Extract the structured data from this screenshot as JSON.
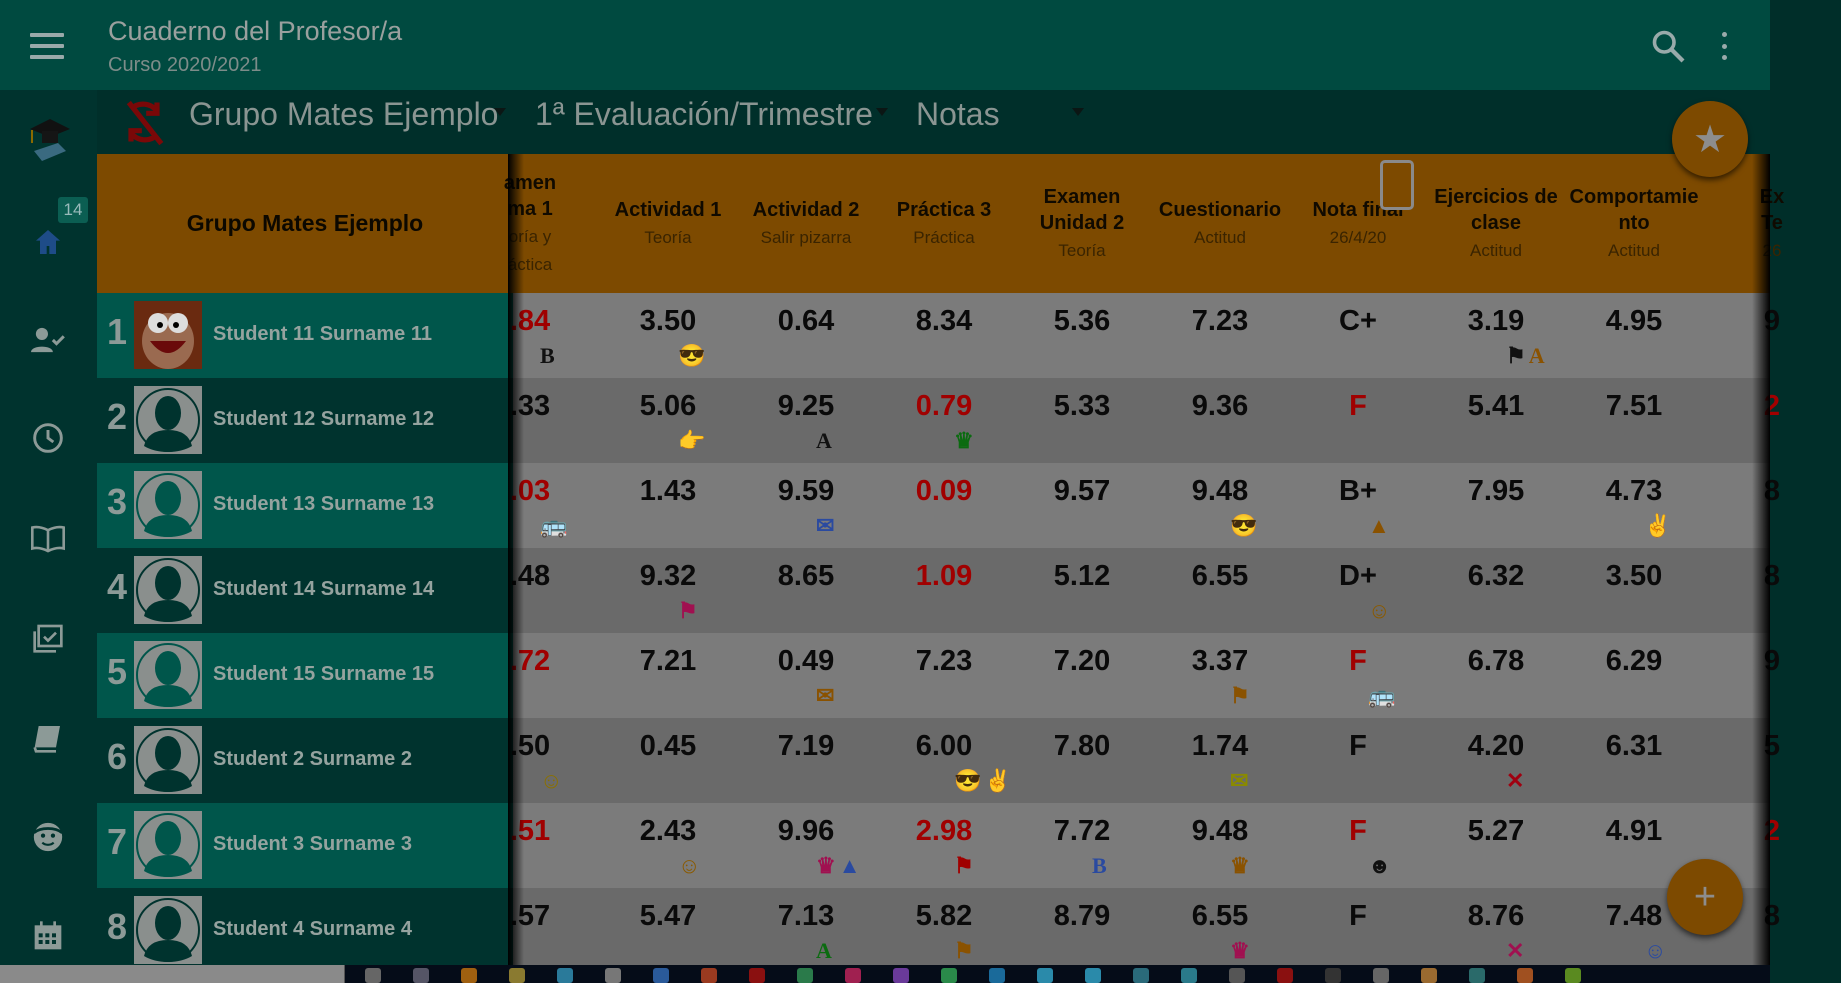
{
  "app": {
    "title": "Cuaderno del Profesor/a",
    "subtitle": "Curso 2020/2021"
  },
  "toolbar": {
    "group": "Grupo Mates Ejemplo",
    "evaluation": "1ª Evaluación/Trimestre",
    "view": "Notas"
  },
  "sidebar": {
    "badge": "14",
    "items": [
      "logo",
      "home",
      "attendance",
      "history",
      "book-open",
      "tasks",
      "book",
      "face",
      "calendar"
    ]
  },
  "table": {
    "group_header": "Grupo Mates Ejemplo",
    "columns": [
      {
        "title": [
          "amen",
          "ma 1"
        ],
        "subtitle": [
          "oría y",
          "áctica"
        ]
      },
      {
        "title": [
          "Actividad 1"
        ],
        "subtitle": [
          "Teoría"
        ]
      },
      {
        "title": [
          "Actividad 2"
        ],
        "subtitle": [
          "Salir pizarra"
        ]
      },
      {
        "title": [
          "Práctica 3"
        ],
        "subtitle": [
          "Práctica"
        ]
      },
      {
        "title": [
          "Examen",
          "Unidad 2"
        ],
        "subtitle": [
          "Teoría"
        ]
      },
      {
        "title": [
          "Cuestionario"
        ],
        "subtitle": [
          "Actitud"
        ]
      },
      {
        "title": [
          "Nota final"
        ],
        "subtitle": [
          "26/4/20"
        ]
      },
      {
        "title": [
          "Ejercicios de",
          "clase"
        ],
        "subtitle": [
          "Actitud"
        ]
      },
      {
        "title": [
          "Comportamie",
          "nto"
        ],
        "subtitle": [
          "Actitud"
        ]
      },
      {
        "title": [
          "Ex",
          "Te"
        ],
        "subtitle": [
          "26"
        ]
      }
    ],
    "students": [
      {
        "num": "1",
        "name": "Student 11 Surname 11",
        "avatar": "cartoon"
      },
      {
        "num": "2",
        "name": "Student 12 Surname 12",
        "avatar": "default"
      },
      {
        "num": "3",
        "name": "Student 13 Surname 13",
        "avatar": "default"
      },
      {
        "num": "4",
        "name": "Student 14 Surname 14",
        "avatar": "default"
      },
      {
        "num": "5",
        "name": "Student 15 Surname 15",
        "avatar": "default"
      },
      {
        "num": "6",
        "name": "Student 2 Surname 2",
        "avatar": "default"
      },
      {
        "num": "7",
        "name": "Student 3 Surname 3",
        "avatar": "default"
      },
      {
        "num": "8",
        "name": "Student 4 Surname 4",
        "avatar": "default"
      }
    ],
    "rows": [
      [
        ".84",
        "3.50",
        "0.64",
        "8.34",
        "5.36",
        "7.23",
        "C+",
        "3.19",
        "4.95",
        "9"
      ],
      [
        ".33",
        "5.06",
        "9.25",
        "0.79",
        "5.33",
        "9.36",
        "F",
        "5.41",
        "7.51",
        "2"
      ],
      [
        ".03",
        "1.43",
        "9.59",
        "0.09",
        "9.57",
        "9.48",
        "B+",
        "7.95",
        "4.73",
        "8"
      ],
      [
        ".48",
        "9.32",
        "8.65",
        "1.09",
        "5.12",
        "6.55",
        "D+",
        "6.32",
        "3.50",
        "8"
      ],
      [
        ".72",
        "7.21",
        "0.49",
        "7.23",
        "7.20",
        "3.37",
        "F",
        "6.78",
        "6.29",
        "9"
      ],
      [
        ".50",
        "0.45",
        "7.19",
        "6.00",
        "7.80",
        "1.74",
        "F",
        "4.20",
        "6.31",
        "5"
      ],
      [
        ".51",
        "2.43",
        "9.96",
        "2.98",
        "7.72",
        "9.48",
        "F",
        "5.27",
        "4.91",
        "2"
      ],
      [
        ".57",
        "5.47",
        "7.13",
        "5.82",
        "8.79",
        "6.55",
        "F",
        "8.76",
        "7.48",
        "8"
      ]
    ],
    "failing": [
      [
        0,
        0
      ],
      [
        1,
        3
      ],
      [
        1,
        6
      ],
      [
        1,
        9
      ],
      [
        2,
        0
      ],
      [
        2,
        3
      ],
      [
        3,
        3
      ],
      [
        4,
        0
      ],
      [
        4,
        6
      ],
      [
        6,
        0
      ],
      [
        6,
        3
      ],
      [
        6,
        6
      ],
      [
        6,
        9
      ]
    ],
    "fail_color": "#a00000",
    "markers": [
      {
        "r": 0,
        "c": 0,
        "items": [
          {
            "icon": "letter-b",
            "glyph": "B",
            "color": "#111111"
          }
        ]
      },
      {
        "r": 0,
        "c": 1,
        "items": [
          {
            "icon": "cool-face-icon",
            "glyph": "😎",
            "color": "#b0185a"
          }
        ]
      },
      {
        "r": 0,
        "c": 7,
        "items": [
          {
            "icon": "flag-icon",
            "glyph": "⚑",
            "color": "#111111"
          },
          {
            "icon": "letter-a",
            "glyph": "A",
            "color": "#8a5200"
          }
        ]
      },
      {
        "r": 1,
        "c": 1,
        "items": [
          {
            "icon": "thumbs-up-icon",
            "glyph": "👉",
            "color": "#8a7000"
          }
        ]
      },
      {
        "r": 1,
        "c": 2,
        "items": [
          {
            "icon": "letter-a",
            "glyph": "A",
            "color": "#111111"
          }
        ]
      },
      {
        "r": 1,
        "c": 3,
        "items": [
          {
            "icon": "crown-icon",
            "glyph": "♛",
            "color": "#0b6b10"
          }
        ]
      },
      {
        "r": 2,
        "c": 0,
        "items": [
          {
            "icon": "bus-icon",
            "glyph": "🚌",
            "color": "#8a7000"
          }
        ]
      },
      {
        "r": 2,
        "c": 2,
        "items": [
          {
            "icon": "mail-icon",
            "glyph": "✉",
            "color": "#2a4aa0"
          }
        ]
      },
      {
        "r": 2,
        "c": 5,
        "items": [
          {
            "icon": "cool-face-icon",
            "glyph": "😎",
            "color": "#8a7a00"
          }
        ]
      },
      {
        "r": 2,
        "c": 6,
        "items": [
          {
            "icon": "warning-icon",
            "glyph": "▲",
            "color": "#8a5200"
          }
        ]
      },
      {
        "r": 2,
        "c": 8,
        "items": [
          {
            "icon": "peace-icon",
            "glyph": "✌",
            "color": "#8a7000"
          }
        ]
      },
      {
        "r": 3,
        "c": 1,
        "items": [
          {
            "icon": "flag-icon",
            "glyph": "⚑",
            "color": "#a01050"
          }
        ]
      },
      {
        "r": 3,
        "c": 6,
        "items": [
          {
            "icon": "devil-icon",
            "glyph": "☺",
            "color": "#8a5a00"
          }
        ]
      },
      {
        "r": 4,
        "c": 2,
        "items": [
          {
            "icon": "mail-icon",
            "glyph": "✉",
            "color": "#8a5200"
          }
        ]
      },
      {
        "r": 4,
        "c": 5,
        "items": [
          {
            "icon": "flag-icon",
            "glyph": "⚑",
            "color": "#8a5200"
          }
        ]
      },
      {
        "r": 4,
        "c": 6,
        "items": [
          {
            "icon": "bus-icon",
            "glyph": "🚌",
            "color": "#0b6b10"
          }
        ]
      },
      {
        "r": 5,
        "c": 0,
        "items": [
          {
            "icon": "devil-icon",
            "glyph": "☺",
            "color": "#8a7000"
          }
        ]
      },
      {
        "r": 5,
        "c": 3,
        "items": [
          {
            "icon": "cool-face-icon",
            "glyph": "😎",
            "color": "#8a7a00"
          },
          {
            "icon": "peace-icon",
            "glyph": "✌",
            "color": "#8a5200"
          }
        ]
      },
      {
        "r": 5,
        "c": 5,
        "items": [
          {
            "icon": "mail-icon",
            "glyph": "✉",
            "color": "#8a8a00"
          }
        ]
      },
      {
        "r": 5,
        "c": 7,
        "items": [
          {
            "icon": "cross-icon",
            "glyph": "✕",
            "color": "#a00010"
          }
        ]
      },
      {
        "r": 6,
        "c": 1,
        "items": [
          {
            "icon": "devil-icon",
            "glyph": "☺",
            "color": "#8a5a00"
          }
        ]
      },
      {
        "r": 6,
        "c": 2,
        "items": [
          {
            "icon": "crown-icon",
            "glyph": "♛",
            "color": "#a01050"
          },
          {
            "icon": "warning-icon",
            "glyph": "▲",
            "color": "#2a4aa0"
          }
        ]
      },
      {
        "r": 6,
        "c": 3,
        "items": [
          {
            "icon": "flag-icon",
            "glyph": "⚑",
            "color": "#a00000"
          }
        ]
      },
      {
        "r": 6,
        "c": 4,
        "items": [
          {
            "icon": "letter-b",
            "glyph": "B",
            "color": "#2a4aa0"
          }
        ]
      },
      {
        "r": 6,
        "c": 5,
        "items": [
          {
            "icon": "crown-icon",
            "glyph": "♛",
            "color": "#8a5200"
          }
        ]
      },
      {
        "r": 6,
        "c": 6,
        "items": [
          {
            "icon": "smile-icon",
            "glyph": "☻",
            "color": "#111111"
          }
        ]
      },
      {
        "r": 7,
        "c": 2,
        "items": [
          {
            "icon": "letter-a",
            "glyph": "A",
            "color": "#0b6b10"
          }
        ]
      },
      {
        "r": 7,
        "c": 3,
        "items": [
          {
            "icon": "flag-icon",
            "glyph": "⚑",
            "color": "#8a5200"
          }
        ]
      },
      {
        "r": 7,
        "c": 5,
        "items": [
          {
            "icon": "crown-icon",
            "glyph": "♛",
            "color": "#a01050"
          }
        ]
      },
      {
        "r": 7,
        "c": 7,
        "items": [
          {
            "icon": "cross-icon",
            "glyph": "✕",
            "color": "#a01050"
          }
        ]
      },
      {
        "r": 7,
        "c": 8,
        "items": [
          {
            "icon": "smile-icon",
            "glyph": "☺",
            "color": "#2a4aa0"
          }
        ]
      }
    ]
  },
  "colors": {
    "appbar": "#004a40",
    "toolbar": "#002f2a",
    "header": "#7d4a00",
    "row_light": "#7b7b7b",
    "row_dark": "#6a6a6a",
    "name_light": "#00564b",
    "name_dark": "#00332e"
  }
}
